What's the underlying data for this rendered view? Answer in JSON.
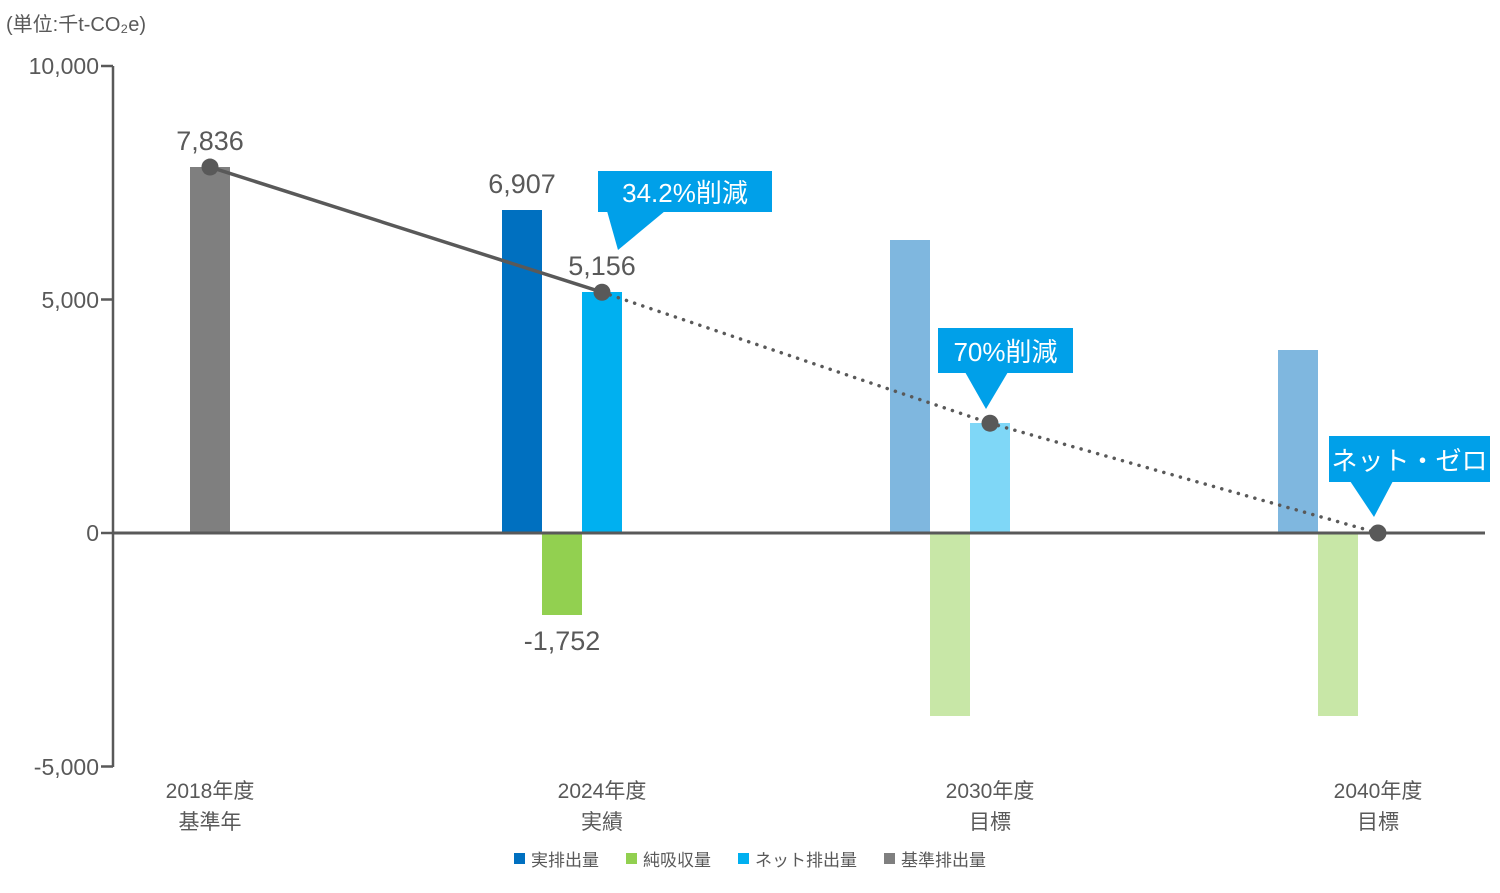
{
  "chart_data": {
    "type": "bar+line",
    "unit_label": "(単位:千t-CO₂e)",
    "y_axis": {
      "min": -5000,
      "max": 10000,
      "tick_values": [
        10000,
        5000,
        0,
        -5000
      ],
      "tick_labels": [
        "10,000",
        "5,000",
        "0",
        "-5,000"
      ],
      "grid": false
    },
    "categories": [
      {
        "label": "2018年度",
        "sublabel": "基準年"
      },
      {
        "label": "2024年度",
        "sublabel": "実績"
      },
      {
        "label": "2030年度",
        "sublabel": "目標"
      },
      {
        "label": "2040年度",
        "sublabel": "目標"
      }
    ],
    "target_categories": [
      2,
      3
    ],
    "series": [
      {
        "key": "actual-emissions",
        "name": "実排出量",
        "color": "#0070C0",
        "values": [
          null,
          6907,
          6269,
          3918
        ]
      },
      {
        "key": "net-absorption",
        "name": "純吸収量",
        "color": "#92D050",
        "values": [
          null,
          -1752,
          -3918,
          -3918
        ]
      },
      {
        "key": "net-emissions",
        "name": "ネット排出量",
        "color": "#00B0F0",
        "values": [
          null,
          5156,
          2351,
          0
        ]
      },
      {
        "key": "baseline-emissions",
        "name": "基準排出量",
        "color": "#7F7F7F",
        "values": [
          7836,
          null,
          null,
          null
        ]
      }
    ],
    "trend_line": {
      "values": [
        7836,
        5156,
        2351,
        0
      ],
      "solid_until_index": 1,
      "color": "#595959"
    },
    "value_labels": [
      {
        "text": "7,836",
        "category": 0,
        "series_index": 3,
        "position": "above"
      },
      {
        "text": "6,907",
        "category": 1,
        "series_index": 0,
        "position": "above"
      },
      {
        "text": "5,156",
        "category": 1,
        "series_index": 2,
        "position": "above"
      },
      {
        "text": "-1,752",
        "category": 1,
        "series_index": 1,
        "position": "below"
      }
    ],
    "callouts": [
      {
        "text": "34.2%削減",
        "category": 1,
        "color": "#00A0E9",
        "text_color": "#FFFFFF"
      },
      {
        "text": "70%削減",
        "category": 2,
        "color": "#00A0E9",
        "text_color": "#FFFFFF"
      },
      {
        "text": "ネット・ゼロ",
        "category": 3,
        "color": "#00A0E9",
        "text_color": "#FFFFFF"
      }
    ]
  },
  "legend": {
    "items": [
      {
        "label": "実排出量",
        "color": "#0070C0"
      },
      {
        "label": "純吸収量",
        "color": "#92D050"
      },
      {
        "label": "ネット排出量",
        "color": "#00B0F0"
      },
      {
        "label": "基準排出量",
        "color": "#7F7F7F"
      }
    ]
  },
  "colors": {
    "text": "#595959",
    "axis": "#595959"
  }
}
